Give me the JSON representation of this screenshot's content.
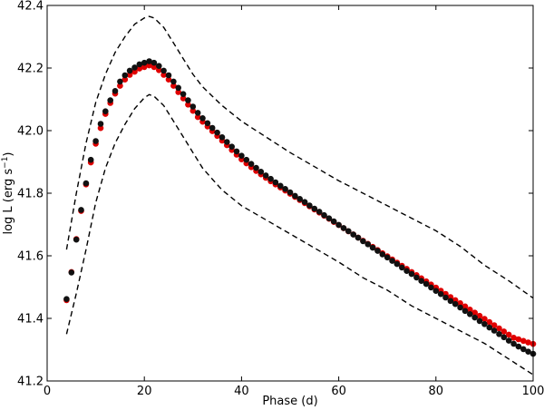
{
  "chart_data": {
    "type": "scatter",
    "title": "",
    "xlabel": "Phase (d)",
    "ylabel": "log L (erg s",
    "ylabel_sup": "−1",
    "ylabel_close": ")",
    "xlim": [
      0,
      100
    ],
    "ylim": [
      41.2,
      42.4
    ],
    "xticks": [
      0,
      20,
      40,
      60,
      80,
      100
    ],
    "yticks": [
      41.2,
      41.4,
      41.6,
      41.8,
      42.0,
      42.2,
      42.4
    ],
    "xtick_labels": [
      "0",
      "20",
      "40",
      "60",
      "80",
      "100"
    ],
    "ytick_labels": [
      "41.2",
      "41.4",
      "41.6",
      "41.8",
      "42.0",
      "42.2",
      "42.4"
    ],
    "grid": false,
    "colors": {
      "red_series": "#e00000",
      "black_series": "#111111",
      "bounds": "#000000"
    },
    "series": [
      {
        "style": "red-dots",
        "color": "#e00000",
        "points": [
          [
            4,
            41.46
          ],
          [
            5,
            41.55
          ],
          [
            6,
            41.655
          ],
          [
            7,
            41.745
          ],
          [
            8,
            41.83
          ],
          [
            9,
            41.9
          ],
          [
            10,
            41.96
          ],
          [
            11,
            42.01
          ],
          [
            12,
            42.055
          ],
          [
            13,
            42.09
          ],
          [
            14,
            42.12
          ],
          [
            15,
            42.145
          ],
          [
            16,
            42.165
          ],
          [
            17,
            42.18
          ],
          [
            18,
            42.19
          ],
          [
            19,
            42.2
          ],
          [
            20,
            42.205
          ],
          [
            21,
            42.21
          ],
          [
            22,
            42.205
          ],
          [
            23,
            42.195
          ],
          [
            24,
            42.18
          ],
          [
            25,
            42.165
          ],
          [
            26,
            42.145
          ],
          [
            27,
            42.125
          ],
          [
            28,
            42.105
          ],
          [
            29,
            42.085
          ],
          [
            30,
            42.065
          ],
          [
            31,
            42.045
          ],
          [
            32,
            42.03
          ],
          [
            33,
            42.015
          ],
          [
            34,
            42.0
          ],
          [
            35,
            41.985
          ],
          [
            36,
            41.97
          ],
          [
            37,
            41.955
          ],
          [
            38,
            41.94
          ],
          [
            39,
            41.925
          ],
          [
            40,
            41.91
          ],
          [
            41,
            41.897
          ],
          [
            42,
            41.885
          ],
          [
            43,
            41.873
          ],
          [
            44,
            41.862
          ],
          [
            45,
            41.851
          ],
          [
            46,
            41.84
          ],
          [
            47,
            41.83
          ],
          [
            48,
            41.82
          ],
          [
            49,
            41.81
          ],
          [
            50,
            41.8
          ],
          [
            51,
            41.79
          ],
          [
            52,
            41.78
          ],
          [
            53,
            41.77
          ],
          [
            54,
            41.76
          ],
          [
            55,
            41.75
          ],
          [
            56,
            41.74
          ],
          [
            57,
            41.73
          ],
          [
            58,
            41.72
          ],
          [
            59,
            41.71
          ],
          [
            60,
            41.7
          ],
          [
            61,
            41.69
          ],
          [
            62,
            41.68
          ],
          [
            63,
            41.67
          ],
          [
            64,
            41.66
          ],
          [
            65,
            41.65
          ],
          [
            66,
            41.64
          ],
          [
            67,
            41.63
          ],
          [
            68,
            41.62
          ],
          [
            69,
            41.61
          ],
          [
            70,
            41.6
          ],
          [
            71,
            41.59
          ],
          [
            72,
            41.58
          ],
          [
            73,
            41.57
          ],
          [
            74,
            41.56
          ],
          [
            75,
            41.55
          ],
          [
            76,
            41.54
          ],
          [
            77,
            41.53
          ],
          [
            78,
            41.52
          ],
          [
            79,
            41.51
          ],
          [
            80,
            41.5
          ],
          [
            81,
            41.49
          ],
          [
            82,
            41.48
          ],
          [
            83,
            41.47
          ],
          [
            84,
            41.46
          ],
          [
            85,
            41.45
          ],
          [
            86,
            41.44
          ],
          [
            87,
            41.43
          ],
          [
            88,
            41.42
          ],
          [
            89,
            41.41
          ],
          [
            90,
            41.4
          ],
          [
            91,
            41.39
          ],
          [
            92,
            41.38
          ],
          [
            93,
            41.37
          ],
          [
            94,
            41.36
          ],
          [
            95,
            41.35
          ],
          [
            96,
            41.34
          ],
          [
            97,
            41.335
          ],
          [
            98,
            41.33
          ],
          [
            99,
            41.325
          ],
          [
            100,
            41.32
          ]
        ]
      },
      {
        "style": "black-dots",
        "color": "#111111",
        "points": [
          [
            4,
            41.46
          ],
          [
            5,
            41.545
          ],
          [
            6,
            41.65
          ],
          [
            7,
            41.745
          ],
          [
            8,
            41.83
          ],
          [
            9,
            41.905
          ],
          [
            10,
            41.965
          ],
          [
            11,
            42.02
          ],
          [
            12,
            42.06
          ],
          [
            13,
            42.095
          ],
          [
            14,
            42.125
          ],
          [
            15,
            42.155
          ],
          [
            16,
            42.175
          ],
          [
            17,
            42.19
          ],
          [
            18,
            42.2
          ],
          [
            19,
            42.21
          ],
          [
            20,
            42.215
          ],
          [
            21,
            42.22
          ],
          [
            22,
            42.215
          ],
          [
            23,
            42.205
          ],
          [
            24,
            42.19
          ],
          [
            25,
            42.175
          ],
          [
            26,
            42.155
          ],
          [
            27,
            42.135
          ],
          [
            28,
            42.115
          ],
          [
            29,
            42.095
          ],
          [
            30,
            42.075
          ],
          [
            31,
            42.055
          ],
          [
            32,
            42.038
          ],
          [
            33,
            42.022
          ],
          [
            34,
            42.007
          ],
          [
            35,
            41.992
          ],
          [
            36,
            41.977
          ],
          [
            37,
            41.962
          ],
          [
            38,
            41.947
          ],
          [
            39,
            41.932
          ],
          [
            40,
            41.918
          ],
          [
            41,
            41.905
          ],
          [
            42,
            41.892
          ],
          [
            43,
            41.879
          ],
          [
            44,
            41.867
          ],
          [
            45,
            41.855
          ],
          [
            46,
            41.844
          ],
          [
            47,
            41.833
          ],
          [
            48,
            41.822
          ],
          [
            49,
            41.812
          ],
          [
            50,
            41.801
          ],
          [
            51,
            41.79
          ],
          [
            52,
            41.78
          ],
          [
            53,
            41.77
          ],
          [
            54,
            41.759
          ],
          [
            55,
            41.749
          ],
          [
            56,
            41.739
          ],
          [
            57,
            41.728
          ],
          [
            58,
            41.718
          ],
          [
            59,
            41.708
          ],
          [
            60,
            41.697
          ],
          [
            61,
            41.687
          ],
          [
            62,
            41.677
          ],
          [
            63,
            41.666
          ],
          [
            64,
            41.656
          ],
          [
            65,
            41.645
          ],
          [
            66,
            41.635
          ],
          [
            67,
            41.624
          ],
          [
            68,
            41.614
          ],
          [
            69,
            41.603
          ],
          [
            70,
            41.593
          ],
          [
            71,
            41.582
          ],
          [
            72,
            41.572
          ],
          [
            73,
            41.561
          ],
          [
            74,
            41.55
          ],
          [
            75,
            41.54
          ],
          [
            76,
            41.529
          ],
          [
            77,
            41.518
          ],
          [
            78,
            41.508
          ],
          [
            79,
            41.497
          ],
          [
            80,
            41.486
          ],
          [
            81,
            41.476
          ],
          [
            82,
            41.465
          ],
          [
            83,
            41.454
          ],
          [
            84,
            41.444
          ],
          [
            85,
            41.433
          ],
          [
            86,
            41.422
          ],
          [
            87,
            41.412
          ],
          [
            88,
            41.401
          ],
          [
            89,
            41.39
          ],
          [
            90,
            41.38
          ],
          [
            91,
            41.369
          ],
          [
            92,
            41.359
          ],
          [
            93,
            41.348
          ],
          [
            94,
            41.338
          ],
          [
            95,
            41.327
          ],
          [
            96,
            41.317
          ],
          [
            97,
            41.308
          ],
          [
            98,
            41.3
          ],
          [
            99,
            41.292
          ],
          [
            100,
            41.285
          ]
        ]
      },
      {
        "style": "dashed-upper",
        "color": "#000000",
        "points": [
          [
            4,
            41.62
          ],
          [
            6,
            41.8
          ],
          [
            8,
            41.96
          ],
          [
            10,
            42.09
          ],
          [
            12,
            42.18
          ],
          [
            14,
            42.25
          ],
          [
            16,
            42.3
          ],
          [
            18,
            42.34
          ],
          [
            20,
            42.36
          ],
          [
            21,
            42.365
          ],
          [
            22,
            42.36
          ],
          [
            24,
            42.33
          ],
          [
            26,
            42.28
          ],
          [
            28,
            42.23
          ],
          [
            30,
            42.18
          ],
          [
            32,
            42.14
          ],
          [
            34,
            42.11
          ],
          [
            36,
            42.08
          ],
          [
            40,
            42.03
          ],
          [
            45,
            41.98
          ],
          [
            50,
            41.93
          ],
          [
            55,
            41.885
          ],
          [
            60,
            41.84
          ],
          [
            65,
            41.8
          ],
          [
            70,
            41.76
          ],
          [
            75,
            41.72
          ],
          [
            80,
            41.68
          ],
          [
            85,
            41.63
          ],
          [
            90,
            41.57
          ],
          [
            95,
            41.52
          ],
          [
            100,
            41.465
          ]
        ]
      },
      {
        "style": "dashed-lower",
        "color": "#000000",
        "points": [
          [
            4,
            41.35
          ],
          [
            6,
            41.48
          ],
          [
            8,
            41.62
          ],
          [
            10,
            41.77
          ],
          [
            12,
            41.88
          ],
          [
            14,
            41.96
          ],
          [
            16,
            42.02
          ],
          [
            18,
            42.07
          ],
          [
            20,
            42.105
          ],
          [
            21,
            42.115
          ],
          [
            22,
            42.11
          ],
          [
            24,
            42.08
          ],
          [
            26,
            42.03
          ],
          [
            28,
            41.98
          ],
          [
            30,
            41.93
          ],
          [
            32,
            41.88
          ],
          [
            34,
            41.845
          ],
          [
            36,
            41.81
          ],
          [
            40,
            41.76
          ],
          [
            45,
            41.715
          ],
          [
            50,
            41.67
          ],
          [
            55,
            41.625
          ],
          [
            60,
            41.58
          ],
          [
            65,
            41.53
          ],
          [
            70,
            41.49
          ],
          [
            75,
            41.44
          ],
          [
            80,
            41.4
          ],
          [
            85,
            41.36
          ],
          [
            90,
            41.32
          ],
          [
            95,
            41.27
          ],
          [
            100,
            41.22
          ]
        ]
      }
    ]
  }
}
